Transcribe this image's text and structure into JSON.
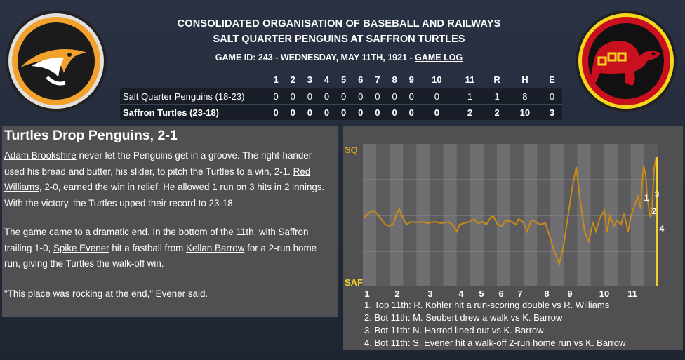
{
  "header": {
    "league": "CONSOLIDATED ORGANISATION OF BASEBALL AND RAILWAYS",
    "matchup": "SALT QUARTER PENGUINS AT SAFFRON TURTLES",
    "game_info": "GAME ID: 243 - WEDNESDAY, MAY 11TH, 1921 - ",
    "game_log_link": "GAME LOG"
  },
  "logos": {
    "away": {
      "name": "penguin-logo",
      "ring_color": "#f2a22c"
    },
    "home": {
      "name": "turtle-logo",
      "ring_color": "#f5d81c",
      "inner_color": "#c8101e"
    }
  },
  "linescore": {
    "columns": [
      "1",
      "2",
      "3",
      "4",
      "5",
      "6",
      "7",
      "8",
      "9",
      "10",
      "11",
      "R",
      "H",
      "E"
    ],
    "teams": [
      {
        "name": "Salt Quarter Penguins (18-23)",
        "scores": [
          "0",
          "0",
          "0",
          "0",
          "0",
          "0",
          "0",
          "0",
          "0",
          "0",
          "1",
          "1",
          "8",
          "0"
        ]
      },
      {
        "name": "Saffron Turtles (23-18)",
        "scores": [
          "0",
          "0",
          "0",
          "0",
          "0",
          "0",
          "0",
          "0",
          "0",
          "0",
          "2",
          "2",
          "10",
          "3"
        ]
      }
    ]
  },
  "story": {
    "headline": "Turtles Drop Penguins, 2-1",
    "p1_link1": "Adam Brookshire",
    "p1_text1": " never let the Penguins get in a groove. The right-hander used his bread and butter, his slider, to pitch the Turtles to a win, 2-1. ",
    "p1_link2": "Red Williams",
    "p1_text2": ", 2-0, earned the win in relief. He allowed 1 run on 3 hits in 2 innings. With the victory, the Turtles upped their record to 23-18.",
    "p2_text1": "The game came to a dramatic end. In the bottom of the 11th, with Saffron trailing 1-0, ",
    "p2_link1": "Spike Evener",
    "p2_text2": " hit a fastball from ",
    "p2_link2": "Kellan Barrow",
    "p2_text3": " for a 2-run home run, giving the Turtles the walk-off win.",
    "p3_text": "\"This place was rocking at the end,\" Evener said."
  },
  "win_prob": {
    "top_label": "SQ",
    "bottom_label": "SAF",
    "innings": [
      "1",
      "2",
      "3",
      "4",
      "5",
      "6",
      "7",
      "8",
      "9",
      "10",
      "11"
    ],
    "colors": {
      "away": "#c98a18",
      "home": "#f0cf2a"
    },
    "markers": [
      "1",
      "2",
      "3",
      "4"
    ],
    "events": [
      "1. Top 11th: R. Kohler hit a run-scoring double vs R. Williams",
      "2. Bot 11th: M. Seubert drew a walk vs K. Barrow",
      "3. Bot 11th: N. Harrod lined out vs K. Barrow",
      "4. Bot 11th: S. Evener hit a walk-off 2-run home run vs K. Barrow"
    ]
  }
}
